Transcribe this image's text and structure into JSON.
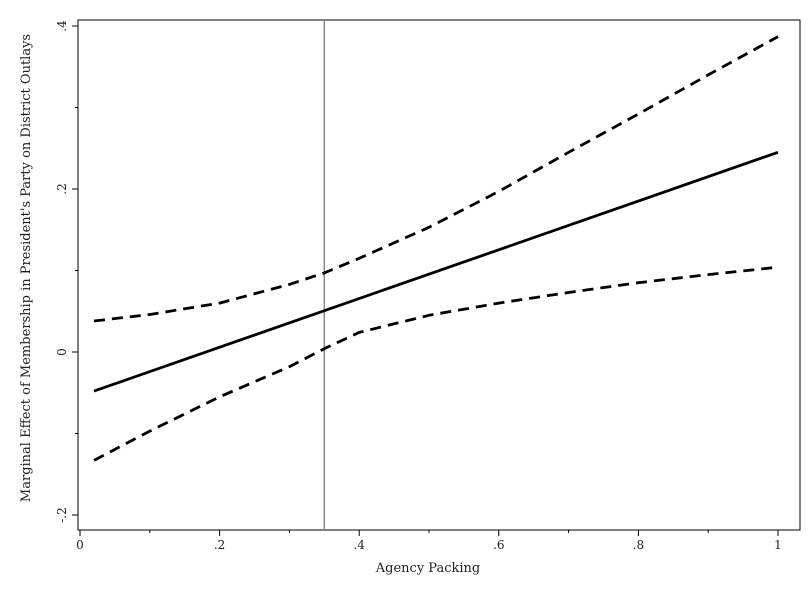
{
  "chart_data": {
    "type": "line",
    "title": "",
    "xlabel": "Agency Packing",
    "ylabel": "Marginal Effect of Membership in President's Party on District Outlays",
    "xlim": [
      0,
      1
    ],
    "ylim": [
      -0.2,
      0.4
    ],
    "x_ticks": [
      {
        "value": 0,
        "label": "0"
      },
      {
        "value": 0.2,
        "label": ".2"
      },
      {
        "value": 0.4,
        "label": ".4"
      },
      {
        "value": 0.6,
        "label": ".6"
      },
      {
        "value": 0.8,
        "label": ".8"
      },
      {
        "value": 1,
        "label": "1"
      }
    ],
    "x_minor_ticks": [
      0.1,
      0.3,
      0.5,
      0.7,
      0.9
    ],
    "y_ticks": [
      {
        "value": -0.2,
        "label": "-.2"
      },
      {
        "value": 0,
        "label": "0"
      },
      {
        "value": 0.2,
        "label": ".2"
      },
      {
        "value": 0.4,
        "label": ".4"
      }
    ],
    "y_minor_ticks": [
      -0.1,
      0.1,
      0.3
    ],
    "reference_line_x": 0.35,
    "grid": false,
    "series": [
      {
        "style": "solid",
        "x": [
          0.02,
          1.0
        ],
        "y": [
          -0.048,
          0.245
        ]
      },
      {
        "style": "dashed",
        "x": [
          0.02,
          0.1,
          0.2,
          0.3,
          0.35,
          0.4,
          0.5,
          0.6,
          0.7,
          0.8,
          0.9,
          1.0
        ],
        "y": [
          0.038,
          0.046,
          0.06,
          0.083,
          0.097,
          0.115,
          0.153,
          0.197,
          0.245,
          0.292,
          0.34,
          0.387
        ]
      },
      {
        "style": "dashed",
        "x": [
          0.02,
          0.1,
          0.2,
          0.3,
          0.35,
          0.4,
          0.5,
          0.6,
          0.7,
          0.8,
          0.9,
          1.0
        ],
        "y": [
          -0.133,
          -0.097,
          -0.055,
          -0.018,
          0.004,
          0.024,
          0.045,
          0.06,
          0.073,
          0.085,
          0.095,
          0.104
        ]
      }
    ]
  }
}
